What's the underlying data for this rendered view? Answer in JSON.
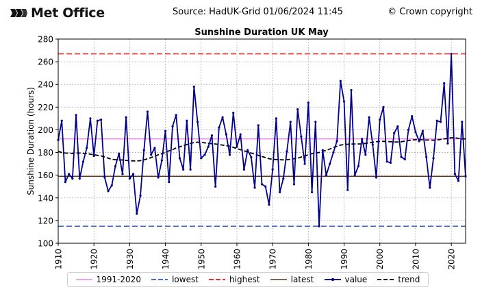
{
  "header": {
    "logo_text": "Met Office",
    "source": "Source: HadUK-Grid 01/06/2024 11:45",
    "copyright": "© Crown copyright"
  },
  "colors": {
    "normal": "#ee82ee",
    "lowest": "#4169e1",
    "highest": "#e83030",
    "latest": "#5a3418",
    "value": "#00008b",
    "trend": "#000000"
  },
  "legend": {
    "normal": "1991-2020",
    "lowest": "lowest",
    "highest": "highest",
    "latest": "latest",
    "value": "value",
    "trend": "trend"
  },
  "chart_data": {
    "type": "line",
    "title": "Sunshine Duration UK May",
    "xlabel": "",
    "ylabel": "Sunshine Duration (hours)",
    "xlim": [
      1910,
      2024
    ],
    "ylim": [
      100,
      280
    ],
    "xticks": [
      1910,
      1920,
      1930,
      1940,
      1950,
      1960,
      1970,
      1980,
      1990,
      2000,
      2010,
      2020
    ],
    "yticks": [
      100,
      120,
      140,
      160,
      180,
      200,
      220,
      240,
      260,
      280
    ],
    "grid": true,
    "legend_position": "bottom",
    "reference_lines": {
      "normal": 192,
      "lowest": 115,
      "highest": 267,
      "latest": 159
    },
    "x": [
      1910,
      1911,
      1912,
      1913,
      1914,
      1915,
      1916,
      1917,
      1918,
      1919,
      1920,
      1921,
      1922,
      1923,
      1924,
      1925,
      1926,
      1927,
      1928,
      1929,
      1930,
      1931,
      1932,
      1933,
      1934,
      1935,
      1936,
      1937,
      1938,
      1939,
      1940,
      1941,
      1942,
      1943,
      1944,
      1945,
      1946,
      1947,
      1948,
      1949,
      1950,
      1951,
      1952,
      1953,
      1954,
      1955,
      1956,
      1957,
      1958,
      1959,
      1960,
      1961,
      1962,
      1963,
      1964,
      1965,
      1966,
      1967,
      1968,
      1969,
      1970,
      1971,
      1972,
      1973,
      1974,
      1975,
      1976,
      1977,
      1978,
      1979,
      1980,
      1981,
      1982,
      1983,
      1984,
      1985,
      1986,
      1987,
      1988,
      1989,
      1990,
      1991,
      1992,
      1993,
      1994,
      1995,
      1996,
      1997,
      1998,
      1999,
      2000,
      2001,
      2002,
      2003,
      2004,
      2005,
      2006,
      2007,
      2008,
      2009,
      2010,
      2011,
      2012,
      2013,
      2014,
      2015,
      2016,
      2017,
      2018,
      2019,
      2020,
      2021,
      2022,
      2023,
      2024
    ],
    "series": [
      {
        "name": "value",
        "values": [
          191,
          208,
          154,
          161,
          157,
          213,
          157,
          172,
          184,
          210,
          177,
          208,
          209,
          158,
          146,
          151,
          168,
          179,
          161,
          211,
          157,
          161,
          126,
          142,
          182,
          216,
          178,
          184,
          158,
          173,
          199,
          154,
          203,
          213,
          175,
          165,
          208,
          165,
          238,
          207,
          175,
          178,
          185,
          195,
          150,
          202,
          211,
          196,
          178,
          215,
          185,
          196,
          165,
          182,
          176,
          149,
          204,
          152,
          150,
          134,
          165,
          210,
          145,
          157,
          181,
          207,
          152,
          218,
          194,
          170,
          224,
          145,
          207,
          115,
          182,
          160,
          170,
          180,
          190,
          243,
          225,
          147,
          235,
          160,
          168,
          192,
          178,
          211,
          187,
          158,
          209,
          220,
          172,
          171,
          197,
          203,
          176,
          174,
          200,
          212,
          198,
          190,
          199,
          176,
          149,
          175,
          208,
          207,
          241,
          188,
          267,
          161,
          155,
          207,
          159
        ]
      },
      {
        "name": "trend",
        "values": [
          181,
          180,
          179.5,
          179.4,
          179.2,
          179.5,
          179.5,
          179.3,
          179,
          178.5,
          178,
          177.5,
          177,
          176,
          175,
          174,
          173.7,
          173.5,
          173.4,
          173,
          172.8,
          172.6,
          172.5,
          172.8,
          173.5,
          174.5,
          175.5,
          176.8,
          178,
          179,
          180,
          181.5,
          182.5,
          184,
          185,
          186,
          187,
          188,
          188.8,
          189.1,
          189,
          188.5,
          188,
          187.8,
          187.5,
          187,
          186.5,
          186,
          185.5,
          184.5,
          183.5,
          182.5,
          181.5,
          180.5,
          179.5,
          178.5,
          177.5,
          176.5,
          175.5,
          174.5,
          174,
          173.8,
          173.6,
          173.5,
          173.6,
          174,
          174.5,
          175,
          176,
          177,
          178,
          179,
          179.5,
          180,
          181,
          182,
          183,
          184.5,
          185.5,
          186.5,
          187,
          187.3,
          187.4,
          187.5,
          187.5,
          187.6,
          188,
          188.5,
          189,
          189.5,
          189.8,
          189.8,
          189.7,
          189.5,
          189.3,
          189.2,
          189.5,
          190,
          190.5,
          191,
          191.3,
          191.3,
          191.2,
          191,
          191,
          190.8,
          191,
          191.5,
          192,
          192.5,
          193,
          193,
          192.5,
          192,
          192
        ]
      }
    ]
  }
}
